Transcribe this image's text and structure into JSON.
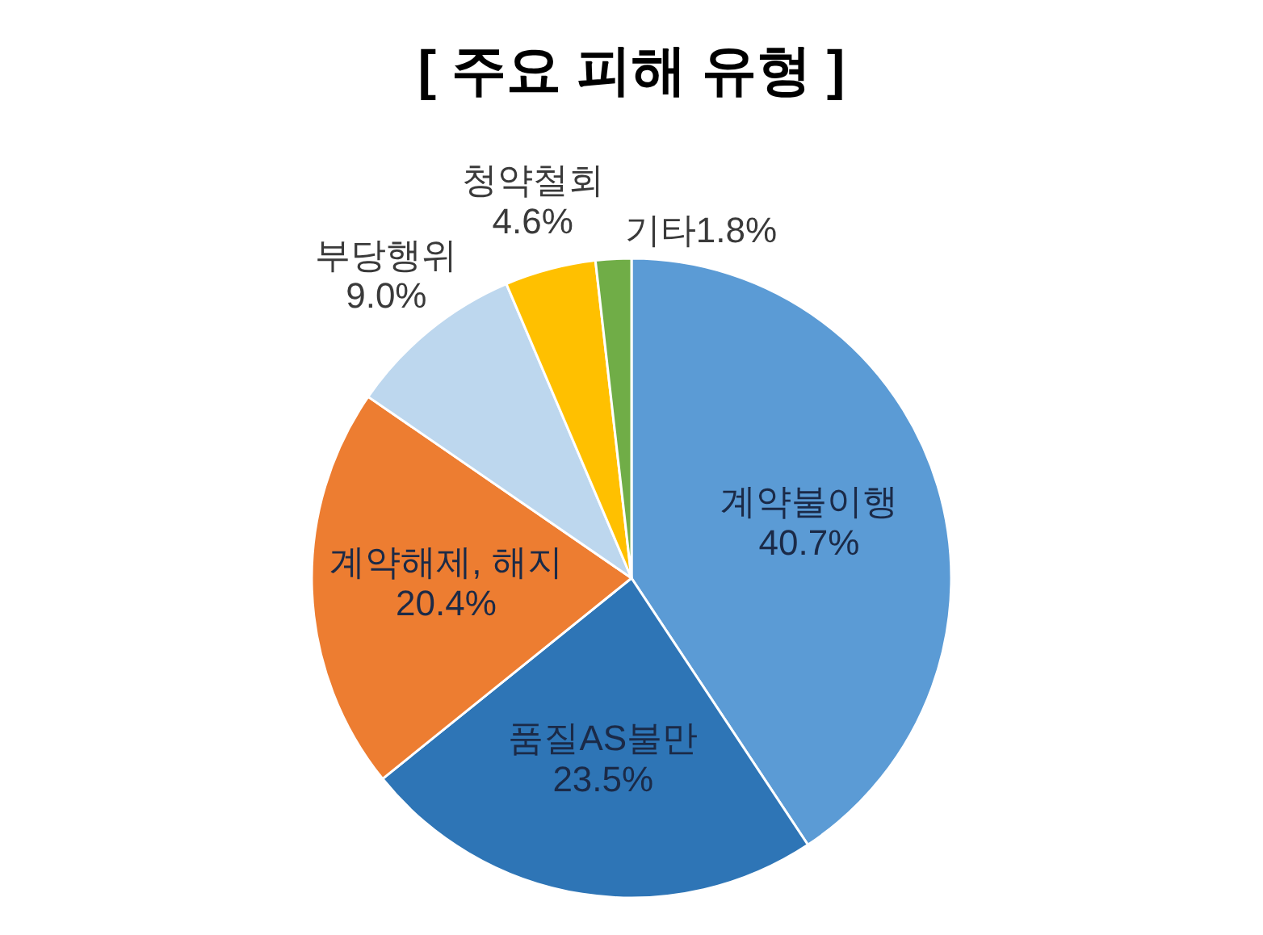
{
  "chart_data": {
    "type": "pie",
    "title": "[ 주요 피해 유형 ]",
    "categories": [
      "계약불이행",
      "품질AS불만",
      "계약해제, 해지",
      "부당행위",
      "청약철회",
      "기타"
    ],
    "values": [
      40.7,
      23.5,
      20.4,
      9.0,
      4.6,
      1.8
    ],
    "value_labels": [
      "40.7%",
      "23.5%",
      "20.4%",
      "9.0%",
      "4.6%",
      "1.8%"
    ],
    "colors": [
      "#5b9bd5",
      "#2e75b6",
      "#ed7d31",
      "#bdd7ee",
      "#ffc000",
      "#70ad47"
    ]
  }
}
